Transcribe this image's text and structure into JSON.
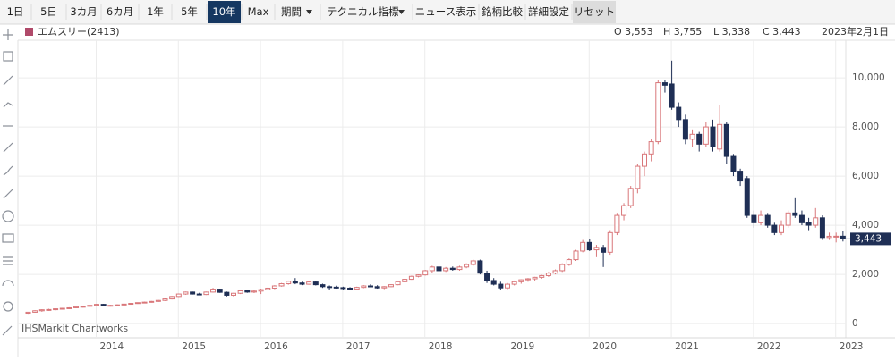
{
  "toolbar": {
    "buttons": [
      "1日",
      "5日",
      "3カ月",
      "6カ月",
      "1年",
      "5年",
      "10年",
      "Max",
      "期間",
      "テクニカル指標",
      "ニュース表示",
      "銘柄比較",
      "詳細設定",
      "リセット"
    ],
    "selected": 6
  },
  "header": {
    "symbol": "エムスリー(2413)",
    "ohlc": [
      "O 3,553",
      "H 3,755",
      "L 3,338",
      "C 3,443"
    ],
    "date": "2023年2月1日"
  },
  "watermark": "IHSMarkit Chartworks",
  "chart_data": {
    "type": "candlestick",
    "up_color": "#d9777a",
    "down_color": "#1f2f55",
    "grid": true,
    "last_price_label": "3,443",
    "ylim": [
      -470,
      11530
    ],
    "yticks": [
      0,
      {
        "value": 2000,
        "label": "2,000"
      },
      {
        "value": 4000,
        "label": "4,000"
      },
      {
        "value": 6000,
        "label": "6,000"
      },
      {
        "value": 8000,
        "label": "8,000"
      },
      {
        "value": 10000,
        "label": "10,000"
      }
    ],
    "categories": [
      null,
      null,
      null,
      null,
      null,
      null,
      null,
      null,
      null,
      null,
      "2014",
      null,
      null,
      null,
      null,
      null,
      null,
      null,
      null,
      null,
      null,
      null,
      "2015",
      null,
      null,
      null,
      null,
      null,
      null,
      null,
      null,
      null,
      null,
      null,
      "2016",
      null,
      null,
      null,
      null,
      null,
      null,
      null,
      null,
      null,
      null,
      null,
      "2017",
      null,
      null,
      null,
      null,
      null,
      null,
      null,
      null,
      null,
      null,
      null,
      "2018",
      null,
      null,
      null,
      null,
      null,
      null,
      null,
      null,
      null,
      null,
      null,
      "2019",
      null,
      null,
      null,
      null,
      null,
      null,
      null,
      null,
      null,
      null,
      null,
      "2020",
      null,
      null,
      null,
      null,
      null,
      null,
      null,
      null,
      null,
      null,
      null,
      "2021",
      null,
      null,
      null,
      null,
      null,
      null,
      null,
      null,
      null,
      null,
      null,
      "2022",
      null,
      null,
      null,
      null,
      null,
      null,
      null,
      null,
      null,
      null,
      null,
      "2023",
      null
    ],
    "ohlc": [
      [
        420,
        470,
        400,
        460
      ],
      [
        460,
        540,
        440,
        520
      ],
      [
        520,
        580,
        480,
        560
      ],
      [
        560,
        600,
        520,
        570
      ],
      [
        570,
        610,
        540,
        600
      ],
      [
        600,
        640,
        570,
        620
      ],
      [
        620,
        660,
        590,
        640
      ],
      [
        640,
        700,
        620,
        680
      ],
      [
        680,
        720,
        650,
        700
      ],
      [
        700,
        760,
        680,
        740
      ],
      [
        740,
        800,
        700,
        780
      ],
      [
        780,
        800,
        700,
        720
      ],
      [
        720,
        760,
        690,
        740
      ],
      [
        740,
        780,
        720,
        760
      ],
      [
        760,
        800,
        740,
        790
      ],
      [
        790,
        830,
        770,
        820
      ],
      [
        820,
        860,
        800,
        850
      ],
      [
        850,
        890,
        830,
        870
      ],
      [
        870,
        920,
        850,
        900
      ],
      [
        900,
        960,
        880,
        940
      ],
      [
        940,
        1020,
        920,
        1000
      ],
      [
        1000,
        1120,
        980,
        1100
      ],
      [
        1100,
        1220,
        1080,
        1200
      ],
      [
        1200,
        1300,
        1170,
        1280
      ],
      [
        1280,
        1300,
        1180,
        1200
      ],
      [
        1200,
        1250,
        1150,
        1180
      ],
      [
        1180,
        1300,
        1160,
        1280
      ],
      [
        1280,
        1450,
        1260,
        1400
      ],
      [
        1400,
        1420,
        1250,
        1270
      ],
      [
        1270,
        1300,
        1100,
        1150
      ],
      [
        1150,
        1250,
        1100,
        1230
      ],
      [
        1230,
        1350,
        1200,
        1330
      ],
      [
        1330,
        1380,
        1250,
        1280
      ],
      [
        1280,
        1350,
        1240,
        1320
      ],
      [
        1320,
        1420,
        1200,
        1380
      ],
      [
        1380,
        1460,
        1350,
        1440
      ],
      [
        1440,
        1560,
        1400,
        1530
      ],
      [
        1530,
        1650,
        1500,
        1620
      ],
      [
        1620,
        1750,
        1580,
        1720
      ],
      [
        1720,
        1850,
        1600,
        1650
      ],
      [
        1650,
        1700,
        1560,
        1600
      ],
      [
        1600,
        1720,
        1580,
        1690
      ],
      [
        1690,
        1720,
        1550,
        1580
      ],
      [
        1580,
        1620,
        1450,
        1500
      ],
      [
        1500,
        1550,
        1380,
        1480
      ],
      [
        1480,
        1540,
        1420,
        1460
      ],
      [
        1460,
        1500,
        1380,
        1440
      ],
      [
        1440,
        1480,
        1360,
        1400
      ],
      [
        1400,
        1500,
        1380,
        1470
      ],
      [
        1470,
        1560,
        1440,
        1530
      ],
      [
        1530,
        1600,
        1480,
        1500
      ],
      [
        1500,
        1560,
        1420,
        1450
      ],
      [
        1450,
        1520,
        1400,
        1500
      ],
      [
        1500,
        1600,
        1480,
        1580
      ],
      [
        1580,
        1720,
        1560,
        1700
      ],
      [
        1700,
        1820,
        1680,
        1800
      ],
      [
        1800,
        1950,
        1780,
        1920
      ],
      [
        1920,
        2000,
        1880,
        1980
      ],
      [
        1980,
        2180,
        1950,
        2150
      ],
      [
        2150,
        2350,
        2050,
        2300
      ],
      [
        2300,
        2500,
        2100,
        2150
      ],
      [
        2150,
        2300,
        2100,
        2250
      ],
      [
        2250,
        2320,
        2150,
        2200
      ],
      [
        2200,
        2350,
        2150,
        2300
      ],
      [
        2300,
        2450,
        2250,
        2400
      ],
      [
        2400,
        2600,
        2350,
        2550
      ],
      [
        2550,
        2600,
        2000,
        2050
      ],
      [
        2050,
        2150,
        1650,
        1750
      ],
      [
        1750,
        1850,
        1550,
        1600
      ],
      [
        1600,
        1700,
        1350,
        1450
      ],
      [
        1450,
        1650,
        1400,
        1600
      ],
      [
        1600,
        1750,
        1550,
        1700
      ],
      [
        1700,
        1800,
        1620,
        1780
      ],
      [
        1780,
        1850,
        1700,
        1820
      ],
      [
        1820,
        1900,
        1750,
        1880
      ],
      [
        1880,
        1980,
        1820,
        1950
      ],
      [
        1950,
        2100,
        1900,
        2050
      ],
      [
        2050,
        2200,
        2000,
        2150
      ],
      [
        2150,
        2450,
        2100,
        2400
      ],
      [
        2400,
        2650,
        2350,
        2600
      ],
      [
        2600,
        3000,
        2550,
        2950
      ],
      [
        2950,
        3400,
        2900,
        3300
      ],
      [
        3300,
        3450,
        2950,
        3000
      ],
      [
        3000,
        3200,
        2700,
        3100
      ],
      [
        3100,
        3200,
        2300,
        2900
      ],
      [
        2900,
        3800,
        2800,
        3700
      ],
      [
        3700,
        4500,
        3600,
        4400
      ],
      [
        4400,
        4900,
        4200,
        4800
      ],
      [
        4800,
        5600,
        4700,
        5500
      ],
      [
        5500,
        6500,
        5300,
        6400
      ],
      [
        6400,
        7000,
        6000,
        6900
      ],
      [
        6900,
        7500,
        6600,
        7400
      ],
      [
        7400,
        9900,
        7300,
        9800
      ],
      [
        9800,
        9900,
        9400,
        9700
      ],
      [
        9750,
        10700,
        8700,
        8800
      ],
      [
        8800,
        9000,
        8000,
        8300
      ],
      [
        8300,
        8500,
        7300,
        7500
      ],
      [
        7500,
        7900,
        7200,
        7700
      ],
      [
        7700,
        7800,
        7000,
        7300
      ],
      [
        7300,
        8200,
        7200,
        8000
      ],
      [
        8000,
        8300,
        7000,
        7200
      ],
      [
        7100,
        8900,
        7000,
        8100
      ],
      [
        8100,
        8200,
        6500,
        6800
      ],
      [
        6800,
        6900,
        6000,
        6200
      ],
      [
        6200,
        6300,
        5600,
        5800
      ],
      [
        5900,
        6000,
        4300,
        4400
      ],
      [
        4400,
        4600,
        3900,
        4100
      ],
      [
        4100,
        4600,
        4000,
        4400
      ],
      [
        4400,
        4500,
        3900,
        4000
      ],
      [
        4000,
        4100,
        3600,
        3700
      ],
      [
        3700,
        4200,
        3600,
        4000
      ],
      [
        4000,
        4600,
        3900,
        4500
      ],
      [
        4500,
        5100,
        4300,
        4400
      ],
      [
        4400,
        4600,
        4000,
        4100
      ],
      [
        4100,
        4300,
        3800,
        4000
      ],
      [
        4000,
        4700,
        3900,
        4300
      ],
      [
        4300,
        4400,
        3400,
        3500
      ],
      [
        3500,
        3700,
        3400,
        3550
      ],
      [
        3550,
        3700,
        3300,
        3553
      ],
      [
        3553,
        3755,
        3338,
        3443
      ]
    ]
  }
}
